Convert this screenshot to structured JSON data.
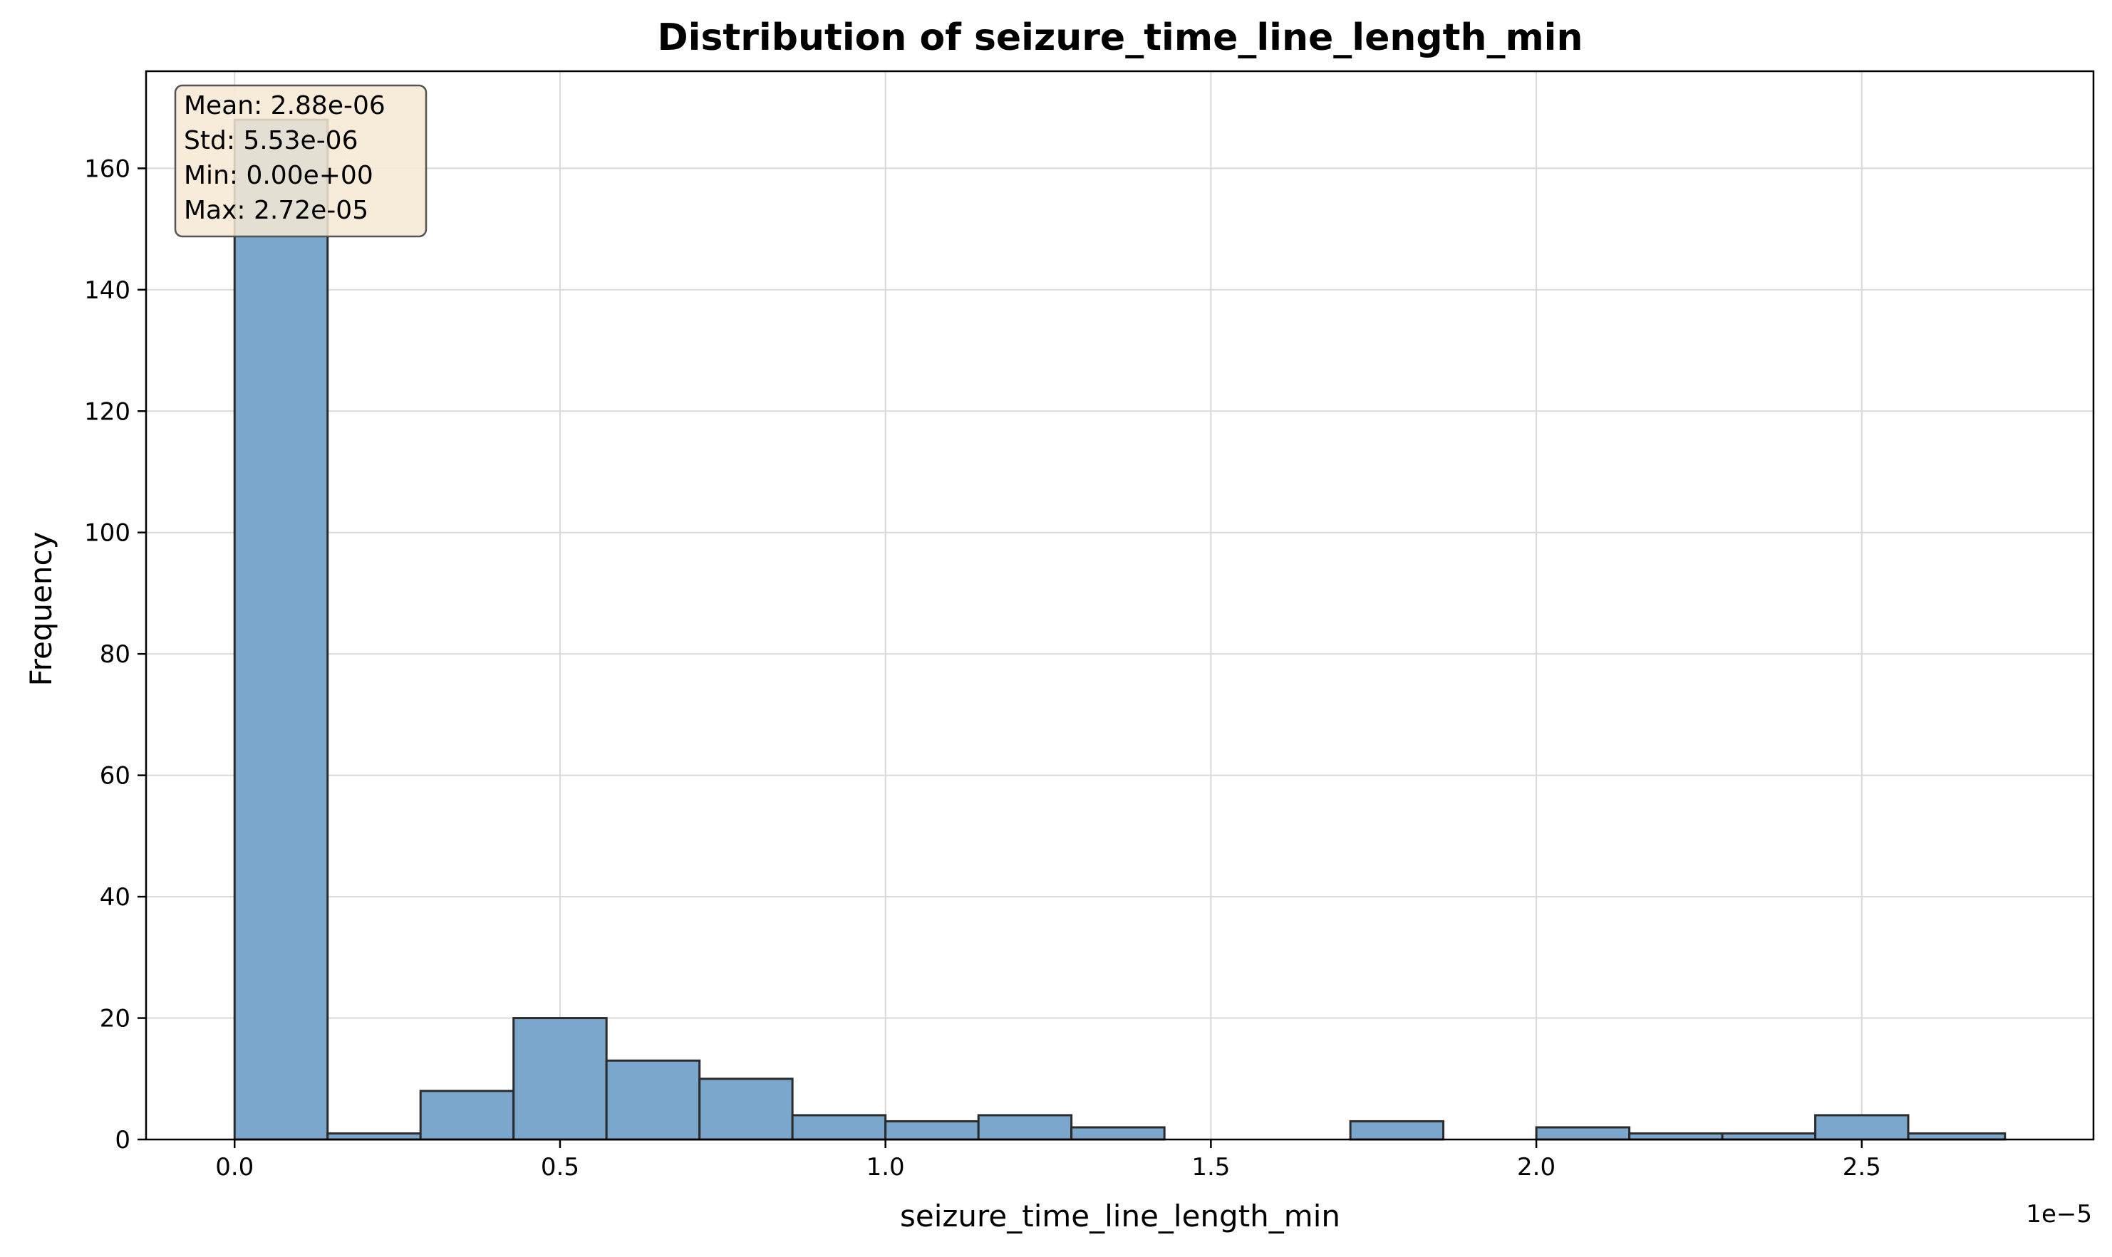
{
  "chart_data": {
    "type": "bar",
    "title": "Distribution of seizure_time_line_length_min",
    "xlabel": "seizure_time_line_length_min",
    "ylabel": "Frequency",
    "x_offset_label": "1e−5",
    "xlim": [
      -0.136,
      2.856
    ],
    "ylim": [
      0,
      176
    ],
    "xticks": [
      0.0,
      0.5,
      1.0,
      1.5,
      2.0,
      2.5
    ],
    "xtick_labels": [
      "0.0",
      "0.5",
      "1.0",
      "1.5",
      "2.0",
      "2.5"
    ],
    "yticks": [
      0,
      20,
      40,
      60,
      80,
      100,
      120,
      140,
      160
    ],
    "yticks_labels": [
      "0",
      "20",
      "40",
      "60",
      "80",
      "100",
      "120",
      "140",
      "160"
    ],
    "bin_edges": [
      0.0,
      0.1429,
      0.2857,
      0.4286,
      0.5714,
      0.7143,
      0.8571,
      1.0,
      1.1429,
      1.2857,
      1.4286,
      1.5714,
      1.7143,
      1.8571,
      2.0,
      2.1429,
      2.2857,
      2.4286,
      2.5714,
      2.72
    ],
    "values": [
      168,
      1,
      8,
      20,
      13,
      10,
      4,
      3,
      4,
      2,
      0,
      0,
      3,
      0,
      2,
      1,
      1,
      4,
      1
    ],
    "bar_color": "#7ba7cc",
    "edge_color": "#2b2b2b",
    "grid": true,
    "stats_box": {
      "lines": [
        "Mean: 2.88e-06",
        "Std: 5.53e-06",
        "Min: 0.00e+00",
        "Max: 2.72e-05"
      ],
      "placement": "top-left",
      "background": "#f6e9d3"
    }
  }
}
